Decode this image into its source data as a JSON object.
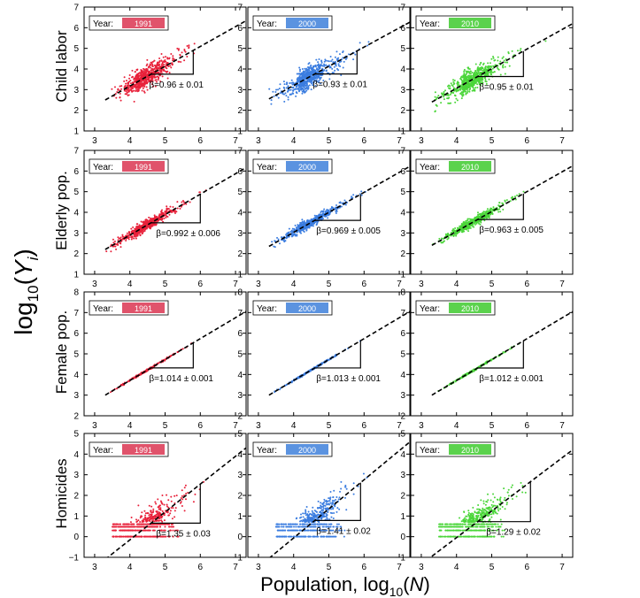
{
  "figure": {
    "ylabel_main": "log",
    "ylabel_sub": "10",
    "ylabel_paren_open": "(",
    "ylabel_var": "Y",
    "ylabel_var_sub": "i",
    "ylabel_paren_close": ")",
    "xlabel_main": "Population, log",
    "xlabel_sub": "10",
    "xlabel_paren_open": "(",
    "xlabel_var": "N",
    "xlabel_paren_close": ")",
    "legend_prefix": "Year:",
    "years": [
      "1991",
      "2000",
      "2010"
    ],
    "colors": {
      "1991": "#e8213a",
      "2000": "#3b7de0",
      "2010": "#4bd63a"
    },
    "legend_colors": {
      "1991": "#e0536b",
      "2000": "#5b93e0",
      "2010": "#5bd24d"
    },
    "rows": [
      "Child labor",
      "Elderly pop.",
      "Female pop.",
      "Homicides"
    ]
  },
  "chart_data": [
    {
      "type": "scatter",
      "row": "Child labor",
      "year": "1991",
      "xlim": [
        2.7,
        7.3
      ],
      "ylim": [
        1,
        7
      ],
      "xticks": [
        3,
        4,
        5,
        6,
        7
      ],
      "yticks": [
        1,
        2,
        3,
        4,
        5,
        6,
        7
      ],
      "fit": {
        "slope": 0.96,
        "x_start": 3.3,
        "y_start": 2.5
      },
      "beta_label": "β=0.96 ± 0.01",
      "triangle": [
        4.6,
        5.8
      ],
      "points": {
        "x_range": [
          3.3,
          6.7
        ],
        "spread": 0.25
      }
    },
    {
      "type": "scatter",
      "row": "Child labor",
      "year": "2000",
      "xlim": [
        2.7,
        7.3
      ],
      "ylim": [
        1,
        7
      ],
      "xticks": [
        3,
        4,
        5,
        6,
        7
      ],
      "yticks": [
        1,
        2,
        3,
        4,
        5,
        6,
        7
      ],
      "fit": {
        "slope": 0.93,
        "x_start": 3.3,
        "y_start": 2.55
      },
      "beta_label": "β=0.93 ± 0.01",
      "triangle": [
        4.6,
        5.8
      ],
      "points": {
        "x_range": [
          3.3,
          6.7
        ],
        "spread": 0.25
      }
    },
    {
      "type": "scatter",
      "row": "Child labor",
      "year": "2010",
      "xlim": [
        2.7,
        7.3
      ],
      "ylim": [
        1,
        7
      ],
      "xticks": [
        3,
        4,
        5,
        6,
        7
      ],
      "yticks": [
        1,
        2,
        3,
        4,
        5,
        6,
        7
      ],
      "fit": {
        "slope": 0.95,
        "x_start": 3.3,
        "y_start": 2.4
      },
      "beta_label": "β=0.95 ± 0.01",
      "triangle": [
        4.6,
        5.9
      ],
      "points": {
        "x_range": [
          3.3,
          6.7
        ],
        "spread": 0.25
      }
    },
    {
      "type": "scatter",
      "row": "Elderly pop.",
      "year": "1991",
      "xlim": [
        2.7,
        7.3
      ],
      "ylim": [
        1,
        7
      ],
      "xticks": [
        3,
        4,
        5,
        6,
        7
      ],
      "yticks": [
        1,
        2,
        3,
        4,
        5,
        6,
        7
      ],
      "fit": {
        "slope": 0.992,
        "x_start": 3.3,
        "y_start": 2.2
      },
      "beta_label": "β=0.992 ± 0.006",
      "triangle": [
        4.6,
        6.0
      ],
      "points": {
        "x_range": [
          3.3,
          6.6
        ],
        "spread": 0.12
      }
    },
    {
      "type": "scatter",
      "row": "Elderly pop.",
      "year": "2000",
      "xlim": [
        2.7,
        7.3
      ],
      "ylim": [
        1,
        7
      ],
      "xticks": [
        3,
        4,
        5,
        6,
        7
      ],
      "yticks": [
        1,
        2,
        3,
        4,
        5,
        6,
        7
      ],
      "fit": {
        "slope": 0.969,
        "x_start": 3.3,
        "y_start": 2.35
      },
      "beta_label": "β=0.969 ± 0.005",
      "triangle": [
        4.6,
        5.9
      ],
      "points": {
        "x_range": [
          3.3,
          6.7
        ],
        "spread": 0.1
      }
    },
    {
      "type": "scatter",
      "row": "Elderly pop.",
      "year": "2010",
      "xlim": [
        2.7,
        7.3
      ],
      "ylim": [
        1,
        7
      ],
      "xticks": [
        3,
        4,
        5,
        6,
        7
      ],
      "yticks": [
        1,
        2,
        3,
        4,
        5,
        6,
        7
      ],
      "fit": {
        "slope": 0.963,
        "x_start": 3.3,
        "y_start": 2.4
      },
      "beta_label": "β=0.963 ± 0.005",
      "triangle": [
        4.6,
        5.9
      ],
      "points": {
        "x_range": [
          3.3,
          6.7
        ],
        "spread": 0.1
      }
    },
    {
      "type": "scatter",
      "row": "Female pop.",
      "year": "1991",
      "xlim": [
        2.7,
        7.3
      ],
      "ylim": [
        2,
        8
      ],
      "xticks": [
        3,
        4,
        5,
        6,
        7
      ],
      "yticks": [
        2,
        3,
        4,
        5,
        6,
        7,
        8
      ],
      "fit": {
        "slope": 1.014,
        "x_start": 3.3,
        "y_start": 3.0
      },
      "beta_label": "β=1.014 ± 0.001",
      "triangle": [
        4.6,
        5.8
      ],
      "points": {
        "x_range": [
          3.3,
          6.0
        ],
        "spread": 0.02
      }
    },
    {
      "type": "scatter",
      "row": "Female pop.",
      "year": "2000",
      "xlim": [
        2.7,
        7.3
      ],
      "ylim": [
        2,
        8
      ],
      "xticks": [
        3,
        4,
        5,
        6,
        7
      ],
      "yticks": [
        2,
        3,
        4,
        5,
        6,
        7,
        8
      ],
      "fit": {
        "slope": 1.013,
        "x_start": 3.3,
        "y_start": 3.0
      },
      "beta_label": "β=1.013 ± 0.001",
      "triangle": [
        4.6,
        5.9
      ],
      "points": {
        "x_range": [
          3.3,
          6.0
        ],
        "spread": 0.02
      }
    },
    {
      "type": "scatter",
      "row": "Female pop.",
      "year": "2010",
      "xlim": [
        2.7,
        7.3
      ],
      "ylim": [
        2,
        8
      ],
      "xticks": [
        3,
        4,
        5,
        6,
        7
      ],
      "yticks": [
        2,
        3,
        4,
        5,
        6,
        7,
        8
      ],
      "fit": {
        "slope": 1.012,
        "x_start": 3.3,
        "y_start": 3.0
      },
      "beta_label": "β=1.012 ± 0.001",
      "triangle": [
        4.6,
        5.9
      ],
      "points": {
        "x_range": [
          3.3,
          6.0
        ],
        "spread": 0.02
      }
    },
    {
      "type": "scatter",
      "row": "Homicides",
      "year": "1991",
      "xlim": [
        2.7,
        7.3
      ],
      "ylim": [
        -1,
        5
      ],
      "xticks": [
        3,
        4,
        5,
        6,
        7
      ],
      "yticks": [
        -1,
        0,
        1,
        2,
        3,
        4,
        5
      ],
      "fit": {
        "slope": 1.35,
        "x_start": 3.3,
        "y_start": -1.1
      },
      "beta_label": "β=1.35 ± 0.03",
      "triangle": [
        4.6,
        6.0
      ],
      "points": {
        "x_range": [
          3.3,
          6.7
        ],
        "spread": 0.35,
        "floor_levels": [
          0,
          0.301,
          0.477,
          0.602
        ]
      }
    },
    {
      "type": "scatter",
      "row": "Homicides",
      "year": "2000",
      "xlim": [
        2.7,
        7.3
      ],
      "ylim": [
        -1,
        5
      ],
      "xticks": [
        3,
        4,
        5,
        6,
        7
      ],
      "yticks": [
        -1,
        0,
        1,
        2,
        3,
        4,
        5
      ],
      "fit": {
        "slope": 1.41,
        "x_start": 3.3,
        "y_start": -1.05
      },
      "beta_label": "β=1.41 ± 0.02",
      "triangle": [
        4.6,
        5.9
      ],
      "points": {
        "x_range": [
          3.3,
          6.7
        ],
        "spread": 0.35,
        "floor_levels": [
          0,
          0.301,
          0.477,
          0.602
        ]
      }
    },
    {
      "type": "scatter",
      "row": "Homicides",
      "year": "2010",
      "xlim": [
        2.7,
        7.3
      ],
      "ylim": [
        -1,
        5
      ],
      "xticks": [
        3,
        4,
        5,
        6,
        7
      ],
      "yticks": [
        -1,
        0,
        1,
        2,
        3,
        4,
        5
      ],
      "fit": {
        "slope": 1.29,
        "x_start": 3.3,
        "y_start": -0.95
      },
      "beta_label": "β=1.29 ± 0.02",
      "triangle": [
        4.6,
        6.1
      ],
      "points": {
        "x_range": [
          3.3,
          6.7
        ],
        "spread": 0.35,
        "floor_levels": [
          0,
          0.301,
          0.477,
          0.602
        ]
      }
    }
  ]
}
